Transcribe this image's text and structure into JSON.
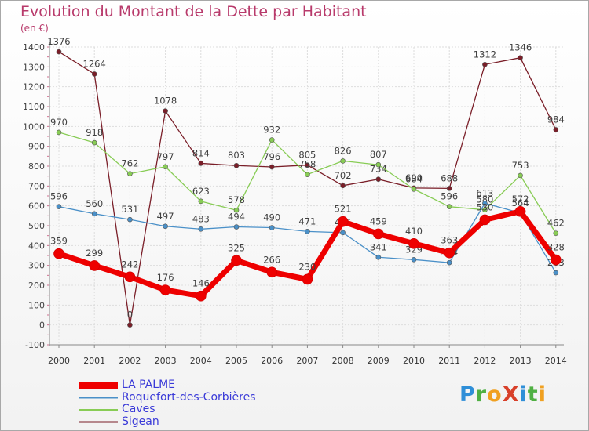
{
  "header": {
    "title": "Evolution du Montant de la Dette par Habitant",
    "unit": "(en €)"
  },
  "brand": {
    "text": "ProXiti",
    "letters": [
      {
        "ch": "P",
        "color": "#2f8fd8"
      },
      {
        "ch": "r",
        "color": "#4fb043"
      },
      {
        "ch": "o",
        "color": "#f0a020"
      },
      {
        "ch": "X",
        "color": "#d8402a"
      },
      {
        "ch": "i",
        "color": "#2f8fd8"
      },
      {
        "ch": "t",
        "color": "#4fb043"
      },
      {
        "ch": "i",
        "color": "#f0a020"
      }
    ]
  },
  "chart_data": {
    "type": "line",
    "title": "Evolution du Montant de la Dette par Habitant",
    "ylabel": "(en €)",
    "x": [
      2000,
      2001,
      2002,
      2003,
      2004,
      2005,
      2006,
      2007,
      2008,
      2009,
      2010,
      2011,
      2012,
      2013,
      2014
    ],
    "ylim": [
      -100,
      1400
    ],
    "yticks": [
      -100,
      0,
      100,
      200,
      300,
      400,
      500,
      600,
      700,
      800,
      900,
      1000,
      1100,
      1200,
      1300,
      1400
    ],
    "grid": true,
    "legend_position": "bottom-left",
    "series": [
      {
        "name": "LA PALME",
        "color": "#ee0000",
        "values": [
          359,
          299,
          242,
          176,
          146,
          325,
          266,
          230,
          521,
          459,
          410,
          363,
          530,
          572,
          328
        ]
      },
      {
        "name": "Roquefort-des-Corbières",
        "color": "#4a90c8",
        "values": [
          596,
          560,
          531,
          497,
          483,
          494,
          490,
          471,
          465,
          341,
          329,
          314,
          613,
          564,
          263
        ]
      },
      {
        "name": "Caves",
        "color": "#88cc55",
        "values": [
          970,
          918,
          762,
          797,
          623,
          578,
          932,
          758,
          826,
          807,
          684,
          596,
          580,
          753,
          462
        ]
      },
      {
        "name": "Sigean",
        "color": "#7a1e28",
        "values": [
          1376,
          1264,
          0,
          1078,
          814,
          803,
          796,
          805,
          702,
          734,
          690,
          688,
          1312,
          1346,
          984
        ]
      }
    ]
  }
}
